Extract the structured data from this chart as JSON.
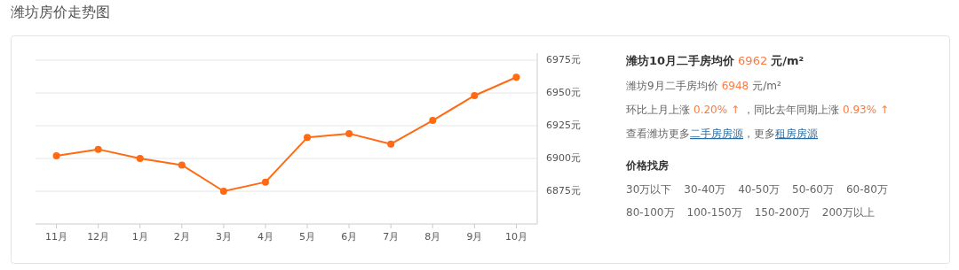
{
  "chart_data": [
    {
      "type": "line",
      "title": "潍坊房价走势图",
      "categories": [
        "11月",
        "12月",
        "1月",
        "2月",
        "3月",
        "4月",
        "5月",
        "6月",
        "7月",
        "8月",
        "9月",
        "10月"
      ],
      "values": [
        6902,
        6907,
        6900,
        6895,
        6875,
        6882,
        6916,
        6919,
        6911,
        6929,
        6948,
        6962
      ],
      "color": "#ff6a13",
      "marker": "circle",
      "grid": "y",
      "ylim": [
        6850,
        6975
      ],
      "yticks": [
        {
          "value": 6875,
          "label": "6875元"
        },
        {
          "value": 6900,
          "label": "6900元"
        },
        {
          "value": 6925,
          "label": "6925元"
        },
        {
          "value": 6950,
          "label": "6950元"
        },
        {
          "value": 6975,
          "label": "6975元"
        }
      ]
    },
    {
      "type": "other",
      "annotations": [
        "潍坊10月二手房均价",
        "6962",
        "元/m²",
        "潍坊9月二手房均价",
        "6948",
        "元/m²",
        "环比上月上涨",
        "0.20% ↑",
        "，同比去年同期上涨",
        "0.93% ↑",
        "查看潍坊更多",
        "二手房房源",
        "，更多",
        "租房房源",
        "价格找房",
        "30万以下",
        "30-40万",
        "40-50万",
        "50-60万",
        "60-80万",
        "80-100万",
        "100-150万",
        "150-200万",
        "200万以上"
      ]
    }
  ]
}
